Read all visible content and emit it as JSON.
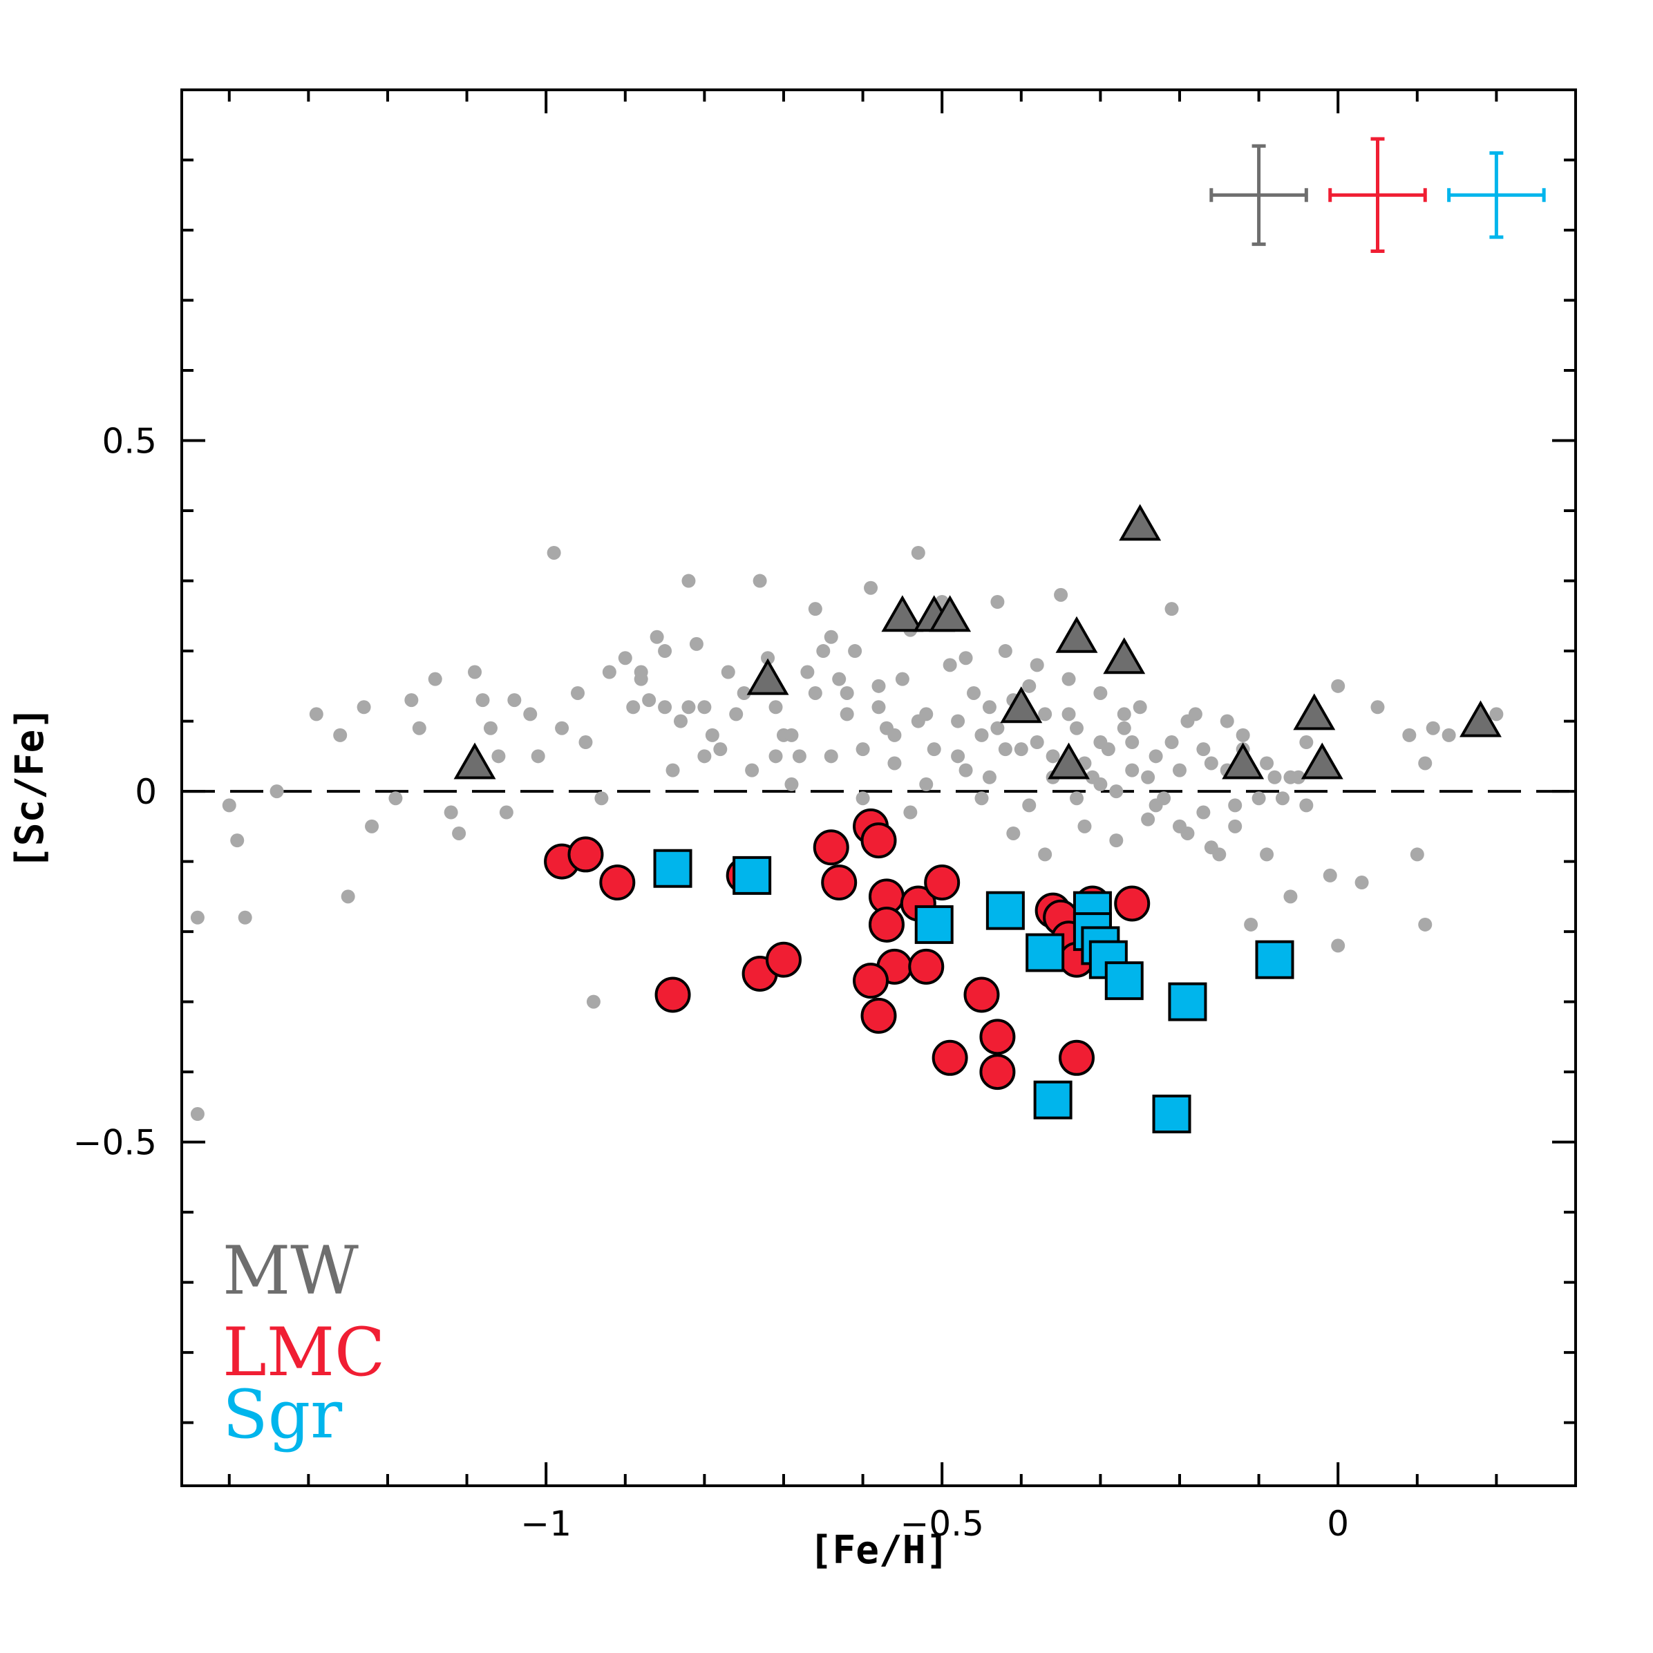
{
  "chart_data": {
    "type": "scatter",
    "xlabel": "[Fe/H]",
    "ylabel": "[Sc/Fe]",
    "xlim": [
      -1.46,
      0.3
    ],
    "ylim": [
      -0.99,
      1.0
    ],
    "xticks": [
      {
        "value": -1,
        "label": "−1"
      },
      {
        "value": -0.5,
        "label": "−0.5"
      },
      {
        "value": 0,
        "label": "0"
      }
    ],
    "yticks": [
      {
        "value": 0.5,
        "label": "0.5"
      },
      {
        "value": 0,
        "label": "0"
      },
      {
        "value": -0.5,
        "label": "−0.5"
      }
    ],
    "reference_line": {
      "y": 0,
      "style": "dashed"
    },
    "legend": [
      {
        "label": "MW",
        "color": "#6e6e6e"
      },
      {
        "label": "LMC",
        "color": "#f01e33"
      },
      {
        "label": "Sgr",
        "color": "#00b5ec"
      }
    ],
    "error_bars": [
      {
        "name": "MW",
        "color": "#6e6e6e",
        "x": -0.1,
        "y": 0.85,
        "xerr": 0.06,
        "yerr": 0.07
      },
      {
        "name": "LMC",
        "color": "#f01e33",
        "x": 0.05,
        "y": 0.85,
        "xerr": 0.06,
        "yerr": 0.08
      },
      {
        "name": "Sgr",
        "color": "#00b5ec",
        "x": 0.2,
        "y": 0.85,
        "xerr": 0.06,
        "yerr": 0.06
      }
    ],
    "series": [
      {
        "name": "MW field (background)",
        "marker": "dot",
        "color": "#a8a8a8",
        "points": [
          [
            -1.4,
            -0.02
          ],
          [
            -1.39,
            -0.07
          ],
          [
            -1.34,
            0.0
          ],
          [
            -1.29,
            0.11
          ],
          [
            -1.26,
            0.08
          ],
          [
            -1.23,
            0.12
          ],
          [
            -1.25,
            -0.15
          ],
          [
            -1.22,
            -0.05
          ],
          [
            -1.19,
            -0.01
          ],
          [
            -1.17,
            0.13
          ],
          [
            -1.16,
            0.09
          ],
          [
            -1.14,
            0.16
          ],
          [
            -1.12,
            -0.03
          ],
          [
            -1.11,
            -0.06
          ],
          [
            -1.09,
            0.17
          ],
          [
            -1.08,
            0.13
          ],
          [
            -1.07,
            0.09
          ],
          [
            -1.06,
            0.05
          ],
          [
            -1.05,
            -0.03
          ],
          [
            -1.04,
            0.13
          ],
          [
            -1.02,
            0.11
          ],
          [
            -1.01,
            0.05
          ],
          [
            -0.99,
            0.34
          ],
          [
            -0.98,
            0.09
          ],
          [
            -0.96,
            0.14
          ],
          [
            -0.95,
            0.07
          ],
          [
            -0.93,
            -0.01
          ],
          [
            -0.92,
            0.17
          ],
          [
            -0.9,
            0.19
          ],
          [
            -0.89,
            0.12
          ],
          [
            -0.88,
            0.16
          ],
          [
            -0.87,
            0.13
          ],
          [
            -0.86,
            0.22
          ],
          [
            -0.85,
            0.2
          ],
          [
            -0.84,
            0.03
          ],
          [
            -0.83,
            0.1
          ],
          [
            -0.82,
            0.3
          ],
          [
            -0.81,
            0.21
          ],
          [
            -0.8,
            0.12
          ],
          [
            -0.79,
            0.08
          ],
          [
            -0.78,
            0.06
          ],
          [
            -0.77,
            0.17
          ],
          [
            -0.76,
            0.11
          ],
          [
            -0.75,
            0.14
          ],
          [
            -0.74,
            0.03
          ],
          [
            -0.73,
            0.3
          ],
          [
            -0.72,
            0.19
          ],
          [
            -0.71,
            0.12
          ],
          [
            -0.7,
            0.08
          ],
          [
            -0.69,
            0.01
          ],
          [
            -0.68,
            0.05
          ],
          [
            -0.67,
            0.17
          ],
          [
            -0.66,
            0.26
          ],
          [
            -0.65,
            0.2
          ],
          [
            -0.64,
            0.22
          ],
          [
            -0.63,
            0.16
          ],
          [
            -0.62,
            0.11
          ],
          [
            -0.61,
            0.2
          ],
          [
            -0.6,
            0.06
          ],
          [
            -0.59,
            0.29
          ],
          [
            -0.58,
            0.15
          ],
          [
            -0.57,
            0.09
          ],
          [
            -0.56,
            0.04
          ],
          [
            -0.55,
            0.16
          ],
          [
            -0.54,
            0.23
          ],
          [
            -0.53,
            0.34
          ],
          [
            -0.52,
            0.11
          ],
          [
            -0.51,
            0.06
          ],
          [
            -0.5,
            0.27
          ],
          [
            -0.49,
            0.18
          ],
          [
            -0.48,
            0.1
          ],
          [
            -0.47,
            0.03
          ],
          [
            -0.46,
            0.14
          ],
          [
            -0.45,
            0.08
          ],
          [
            -0.44,
            0.02
          ],
          [
            -0.43,
            0.27
          ],
          [
            -0.42,
            0.2
          ],
          [
            -0.41,
            0.13
          ],
          [
            -0.4,
            0.06
          ],
          [
            -0.39,
            -0.02
          ],
          [
            -0.38,
            0.18
          ],
          [
            -0.37,
            0.11
          ],
          [
            -0.36,
            0.05
          ],
          [
            -0.35,
            0.28
          ],
          [
            -0.34,
            0.16
          ],
          [
            -0.33,
            0.09
          ],
          [
            -0.32,
            -0.05
          ],
          [
            -0.31,
            0.02
          ],
          [
            -0.3,
            0.14
          ],
          [
            -0.29,
            0.06
          ],
          [
            -0.28,
            0.0
          ],
          [
            -0.27,
            0.09
          ],
          [
            -0.26,
            0.03
          ],
          [
            -0.25,
            0.12
          ],
          [
            -0.24,
            -0.04
          ],
          [
            -0.23,
            0.05
          ],
          [
            -0.22,
            -0.01
          ],
          [
            -0.21,
            0.26
          ],
          [
            -0.2,
            0.03
          ],
          [
            -0.19,
            -0.06
          ],
          [
            -0.18,
            0.11
          ],
          [
            -0.17,
            -0.03
          ],
          [
            -0.16,
            0.04
          ],
          [
            -0.15,
            -0.09
          ],
          [
            -0.14,
            0.1
          ],
          [
            -0.13,
            -0.05
          ],
          [
            -0.12,
            0.06
          ],
          [
            -0.11,
            -0.19
          ],
          [
            -0.1,
            -0.01
          ],
          [
            -0.09,
            -0.09
          ],
          [
            -0.08,
            0.02
          ],
          [
            -0.07,
            -0.01
          ],
          [
            -0.06,
            -0.15
          ],
          [
            -0.05,
            0.02
          ],
          [
            -0.04,
            -0.02
          ],
          [
            -0.03,
            0.1
          ],
          [
            -0.02,
            0.05
          ],
          [
            -0.01,
            -0.12
          ],
          [
            0.0,
            0.15
          ],
          [
            0.0,
            -0.22
          ],
          [
            0.03,
            -0.13
          ],
          [
            0.05,
            0.12
          ],
          [
            0.09,
            0.08
          ],
          [
            0.1,
            -0.09
          ],
          [
            0.11,
            0.04
          ],
          [
            0.12,
            0.09
          ],
          [
            0.14,
            0.08
          ],
          [
            0.11,
            -0.19
          ],
          [
            0.2,
            0.11
          ],
          [
            -1.38,
            -0.18
          ],
          [
            -1.44,
            -0.18
          ],
          [
            -1.44,
            -0.46
          ],
          [
            -0.94,
            -0.3
          ],
          [
            -0.6,
            -0.01
          ],
          [
            -0.58,
            0.12
          ],
          [
            -0.56,
            0.08
          ],
          [
            -0.54,
            -0.03
          ],
          [
            -0.52,
            0.01
          ],
          [
            -0.48,
            0.05
          ],
          [
            -0.45,
            -0.01
          ],
          [
            -0.43,
            0.09
          ],
          [
            -0.41,
            -0.06
          ],
          [
            -0.39,
            0.15
          ],
          [
            -0.37,
            -0.09
          ],
          [
            -0.36,
            0.02
          ],
          [
            -0.33,
            -0.01
          ],
          [
            -0.3,
            0.01
          ],
          [
            -0.28,
            -0.07
          ],
          [
            -0.26,
            0.07
          ],
          [
            -0.24,
            0.02
          ],
          [
            -0.23,
            -0.02
          ],
          [
            -0.21,
            0.07
          ],
          [
            -0.2,
            -0.05
          ],
          [
            -0.19,
            0.1
          ],
          [
            -0.17,
            0.06
          ],
          [
            -0.16,
            -0.08
          ],
          [
            -0.14,
            0.03
          ],
          [
            -0.13,
            -0.02
          ],
          [
            -0.12,
            0.08
          ],
          [
            -0.09,
            0.04
          ],
          [
            -0.06,
            0.02
          ],
          [
            -0.04,
            0.07
          ],
          [
            -0.62,
            0.14
          ],
          [
            -0.64,
            0.05
          ],
          [
            -0.66,
            0.14
          ],
          [
            -0.69,
            0.08
          ],
          [
            -0.71,
            0.05
          ],
          [
            -0.8,
            0.05
          ],
          [
            -0.82,
            0.12
          ],
          [
            -0.85,
            0.12
          ],
          [
            -0.88,
            0.17
          ],
          [
            -0.53,
            0.1
          ],
          [
            -0.47,
            0.19
          ],
          [
            -0.44,
            0.12
          ],
          [
            -0.42,
            0.06
          ],
          [
            -0.38,
            0.07
          ],
          [
            -0.34,
            0.11
          ],
          [
            -0.32,
            0.04
          ],
          [
            -0.3,
            0.07
          ],
          [
            -0.27,
            0.11
          ]
        ]
      },
      {
        "name": "MW",
        "marker": "triangle",
        "color": "#6e6e6e",
        "points": [
          [
            -1.09,
            0.04
          ],
          [
            -0.72,
            0.16
          ],
          [
            -0.55,
            0.25
          ],
          [
            -0.51,
            0.25
          ],
          [
            -0.49,
            0.25
          ],
          [
            -0.4,
            0.12
          ],
          [
            -0.34,
            0.04
          ],
          [
            -0.33,
            0.22
          ],
          [
            -0.27,
            0.19
          ],
          [
            -0.25,
            0.38
          ],
          [
            -0.12,
            0.04
          ],
          [
            -0.03,
            0.11
          ],
          [
            -0.02,
            0.04
          ],
          [
            0.18,
            0.1
          ]
        ]
      },
      {
        "name": "LMC",
        "marker": "circle",
        "color": "#f01e33",
        "points": [
          [
            -0.98,
            -0.1
          ],
          [
            -0.95,
            -0.09
          ],
          [
            -0.91,
            -0.13
          ],
          [
            -0.84,
            -0.29
          ],
          [
            -0.75,
            -0.12
          ],
          [
            -0.73,
            -0.26
          ],
          [
            -0.7,
            -0.24
          ],
          [
            -0.64,
            -0.08
          ],
          [
            -0.63,
            -0.13
          ],
          [
            -0.59,
            -0.05
          ],
          [
            -0.58,
            -0.07
          ],
          [
            -0.57,
            -0.15
          ],
          [
            -0.57,
            -0.19
          ],
          [
            -0.56,
            -0.25
          ],
          [
            -0.59,
            -0.27
          ],
          [
            -0.58,
            -0.32
          ],
          [
            -0.53,
            -0.16
          ],
          [
            -0.52,
            -0.25
          ],
          [
            -0.5,
            -0.13
          ],
          [
            -0.49,
            -0.38
          ],
          [
            -0.45,
            -0.29
          ],
          [
            -0.43,
            -0.35
          ],
          [
            -0.43,
            -0.4
          ],
          [
            -0.36,
            -0.17
          ],
          [
            -0.35,
            -0.18
          ],
          [
            -0.34,
            -0.21
          ],
          [
            -0.33,
            -0.24
          ],
          [
            -0.33,
            -0.38
          ],
          [
            -0.31,
            -0.16
          ],
          [
            -0.26,
            -0.16
          ]
        ]
      },
      {
        "name": "Sgr",
        "marker": "square",
        "color": "#00b5ec",
        "points": [
          [
            -0.84,
            -0.11
          ],
          [
            -0.74,
            -0.12
          ],
          [
            -0.51,
            -0.19
          ],
          [
            -0.42,
            -0.17
          ],
          [
            -0.37,
            -0.23
          ],
          [
            -0.36,
            -0.44
          ],
          [
            -0.31,
            -0.17
          ],
          [
            -0.31,
            -0.2
          ],
          [
            -0.3,
            -0.22
          ],
          [
            -0.29,
            -0.24
          ],
          [
            -0.27,
            -0.27
          ],
          [
            -0.19,
            -0.3
          ],
          [
            -0.21,
            -0.46
          ],
          [
            -0.08,
            -0.24
          ]
        ]
      }
    ]
  }
}
